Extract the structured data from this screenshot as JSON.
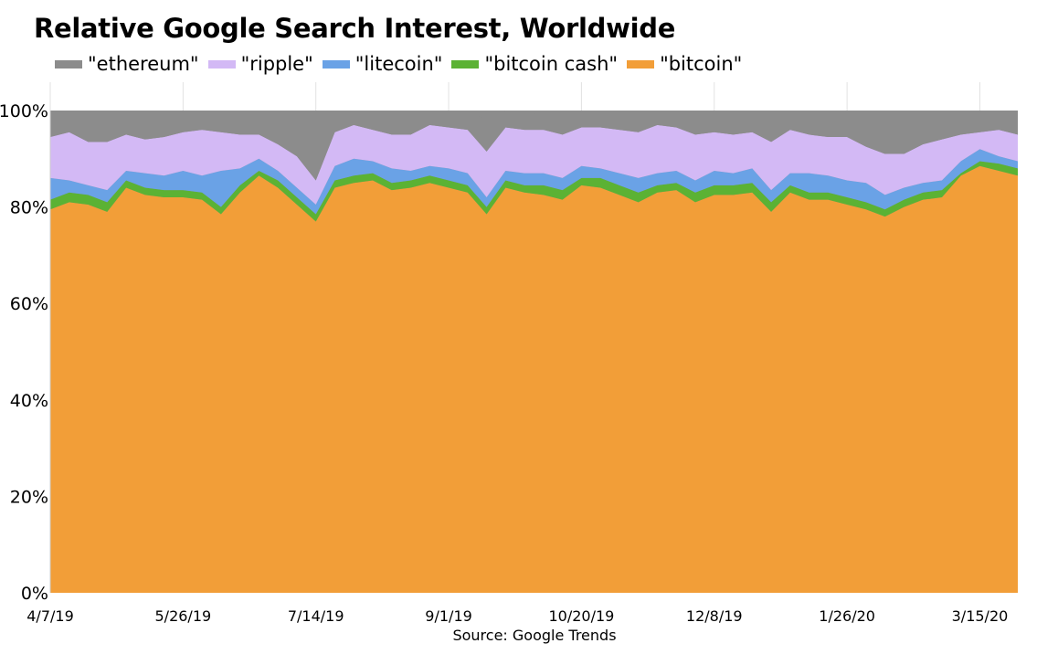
{
  "title": "Relative Google Search Interest, Worldwide",
  "source": "Source: Google Trends",
  "legend": [
    {
      "label": "\"ethereum\"",
      "color": "#8c8c8c"
    },
    {
      "label": "\"ripple\"",
      "color": "#d3b9f5"
    },
    {
      "label": "\"litecoin\"",
      "color": "#6aa2e6"
    },
    {
      "label": "\"bitcoin cash\"",
      "color": "#5bb234"
    },
    {
      "label": "\"bitcoin\"",
      "color": "#f29e38"
    }
  ],
  "chart_data": {
    "type": "area",
    "stacked": true,
    "title": "Relative Google Search Interest, Worldwide",
    "xlabel": "",
    "ylabel": "",
    "ylim": [
      0,
      100
    ],
    "y_ticks": [
      "0%",
      "20%",
      "40%",
      "60%",
      "80%",
      "100%"
    ],
    "x_ticks": [
      "4/7/19",
      "5/26/19",
      "7/14/19",
      "9/1/19",
      "10/20/19",
      "12/8/19",
      "1/26/20",
      "3/15/20"
    ],
    "x_tick_indices": [
      0,
      7,
      14,
      21,
      28,
      35,
      42,
      49
    ],
    "grid": "vertical",
    "legend_position": "top",
    "series": [
      {
        "name": "\"bitcoin\"",
        "color": "#f29e38",
        "values": [
          79.5,
          81,
          80.5,
          79,
          84,
          82.5,
          82,
          82,
          81.5,
          78.5,
          83,
          86.5,
          84,
          80.5,
          77,
          84,
          85,
          85.5,
          83.5,
          84,
          85,
          84,
          83,
          78.5,
          84,
          83,
          82.5,
          81.5,
          84.5,
          84,
          82.5,
          81,
          83,
          83.5,
          81,
          82.5,
          82.5,
          83,
          79,
          83,
          81.5,
          81.5,
          80.5,
          79.5,
          78,
          80,
          81.5,
          82,
          86.5,
          88.5,
          87.5,
          86.5
        ]
      },
      {
        "name": "\"bitcoin cash\"",
        "color": "#5bb234",
        "values": [
          2,
          2,
          2,
          2,
          1.5,
          1.5,
          1.5,
          1.5,
          1.5,
          1.5,
          1.5,
          1,
          1.5,
          1.5,
          1.5,
          1.5,
          1.5,
          1.5,
          1.5,
          1.5,
          1.5,
          1.5,
          1.5,
          1.5,
          1.5,
          1.5,
          2,
          2,
          1.5,
          2,
          2,
          2,
          1.5,
          1.5,
          2,
          2,
          2,
          2,
          2,
          1.5,
          1.5,
          1.5,
          1.5,
          1.5,
          1.5,
          1.5,
          1.5,
          1.5,
          0.5,
          1,
          1.5,
          1.5
        ]
      },
      {
        "name": "\"litecoin\"",
        "color": "#6aa2e6",
        "values": [
          4.5,
          2.5,
          2,
          2.5,
          2,
          3,
          3,
          4,
          3.5,
          7.5,
          3.5,
          2.5,
          2,
          2,
          2,
          3,
          3.5,
          2.5,
          3,
          2,
          2,
          2.5,
          2.5,
          2,
          2,
          2.5,
          2.5,
          2.5,
          2.5,
          2,
          2.5,
          3,
          2.5,
          2.5,
          2.5,
          3,
          2.5,
          3,
          2.5,
          2.5,
          4,
          3.5,
          3.5,
          4,
          3,
          2.5,
          2,
          2,
          2.5,
          2.5,
          1.5,
          1.5
        ]
      },
      {
        "name": "\"ripple\"",
        "color": "#d3b9f5",
        "values": [
          8.5,
          10,
          9,
          10,
          7.5,
          7,
          8,
          8,
          9.5,
          8,
          7,
          5,
          5.5,
          6.5,
          5,
          7,
          7,
          6.5,
          7,
          7.5,
          8.5,
          8.5,
          9,
          9.5,
          9,
          9,
          9,
          9,
          8,
          8.5,
          9,
          9.5,
          10,
          9,
          9.5,
          8,
          8,
          7.5,
          10,
          9,
          8,
          8,
          9,
          7.5,
          8.5,
          7,
          8,
          8.5,
          5.5,
          3.5,
          5.5,
          5.5
        ]
      },
      {
        "name": "\"ethereum\"",
        "color": "#8c8c8c",
        "values": [
          5.5,
          4.5,
          6.5,
          6.5,
          5,
          6.5,
          5.5,
          4.5,
          4,
          4.5,
          5,
          5,
          7,
          9.5,
          14.5,
          4.5,
          3,
          4,
          5,
          5,
          3,
          3.5,
          4,
          6.5,
          3.5,
          2.5,
          4,
          5,
          3.5,
          3.5,
          4,
          4.5,
          4,
          5.5,
          5,
          4.5,
          5,
          4.5,
          6.5,
          5,
          5,
          5.5,
          5.5,
          7.5,
          9,
          9,
          7,
          5.5,
          5,
          4.5,
          4,
          5
        ]
      }
    ]
  }
}
